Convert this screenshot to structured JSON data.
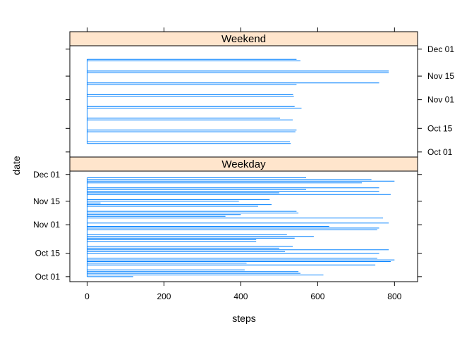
{
  "chart_data": {
    "type": "line",
    "xlabel": "steps",
    "ylabel": "date",
    "xlim": [
      -45,
      860
    ],
    "x_ticks": [
      0,
      200,
      400,
      600,
      800
    ],
    "y_ticks": [
      {
        "label": "Oct 01",
        "day": 1
      },
      {
        "label": "Oct 15",
        "day": 15
      },
      {
        "label": "Nov 01",
        "day": 32
      },
      {
        "label": "Nov 15",
        "day": 46
      },
      {
        "label": "Dec 01",
        "day": 62
      }
    ],
    "day_range": [
      -2,
      64
    ],
    "colors": {
      "strip_bg": "#ffe5cc",
      "line": "#0080ff",
      "frame": "#000000"
    },
    "panels": [
      {
        "name": "Weekend",
        "series": [
          {
            "day": 6,
            "values": [
              0,
              530,
              0
            ]
          },
          {
            "day": 7,
            "values": [
              0,
              528,
              0
            ]
          },
          {
            "day": 13,
            "values": [
              0,
              542,
              0
            ]
          },
          {
            "day": 14,
            "values": [
              0,
              545,
              0
            ]
          },
          {
            "day": 20,
            "values": [
              0,
              535,
              0
            ]
          },
          {
            "day": 21,
            "values": [
              0,
              502,
              0
            ]
          },
          {
            "day": 27,
            "values": [
              0,
              558,
              0
            ]
          },
          {
            "day": 28,
            "values": [
              0,
              540,
              0
            ]
          },
          {
            "day": 34,
            "values": [
              0,
              538,
              0
            ]
          },
          {
            "day": 35,
            "values": [
              0,
              536,
              0
            ]
          },
          {
            "day": 41,
            "values": [
              0,
              545,
              0
            ]
          },
          {
            "day": 42,
            "values": [
              0,
              760,
              0
            ]
          },
          {
            "day": 48,
            "values": [
              0,
              785,
              0
            ]
          },
          {
            "day": 49,
            "values": [
              0,
              785,
              0
            ]
          },
          {
            "day": 55,
            "values": [
              0,
              555,
              0
            ]
          },
          {
            "day": 56,
            "values": [
              0,
              545,
              0
            ]
          }
        ]
      },
      {
        "name": "Weekday",
        "series": [
          {
            "day": 1,
            "values": [
              0,
              120,
              0
            ]
          },
          {
            "day": 2,
            "values": [
              0,
              35,
              615,
              0
            ]
          },
          {
            "day": 3,
            "values": [
              0,
              555,
              0
            ]
          },
          {
            "day": 4,
            "values": [
              0,
              550,
              0
            ]
          },
          {
            "day": 5,
            "values": [
              0,
              410,
              0
            ]
          },
          {
            "day": 8,
            "values": [
              0,
              30,
              750,
              0
            ]
          },
          {
            "day": 9,
            "values": [
              0,
              415,
              0
            ]
          },
          {
            "day": 10,
            "values": [
              0,
              790,
              0
            ]
          },
          {
            "day": 11,
            "values": [
              0,
              800,
              0
            ]
          },
          {
            "day": 12,
            "values": [
              0,
              755,
              0
            ]
          },
          {
            "day": 15,
            "values": [
              0,
              20,
              760,
              0
            ]
          },
          {
            "day": 16,
            "values": [
              0,
              10,
              515,
              0
            ]
          },
          {
            "day": 17,
            "values": [
              0,
              785,
              0
            ]
          },
          {
            "day": 18,
            "values": [
              0,
              500,
              0
            ]
          },
          {
            "day": 19,
            "values": [
              0,
              535,
              0
            ]
          },
          {
            "day": 22,
            "values": [
              0,
              440,
              0
            ]
          },
          {
            "day": 23,
            "values": [
              0,
              440,
              0
            ]
          },
          {
            "day": 24,
            "values": [
              0,
              540,
              0
            ]
          },
          {
            "day": 25,
            "values": [
              0,
              590,
              0
            ]
          },
          {
            "day": 26,
            "values": [
              0,
              520,
              0
            ]
          },
          {
            "day": 29,
            "values": [
              0,
              755,
              0
            ]
          },
          {
            "day": 30,
            "values": [
              0,
              760,
              0
            ]
          },
          {
            "day": 31,
            "values": [
              0,
              630,
              0
            ]
          },
          {
            "day": 33,
            "values": [
              0,
              785,
              0
            ]
          },
          {
            "day": 36,
            "values": [
              0,
              770,
              0
            ]
          },
          {
            "day": 37,
            "values": [
              0,
              360,
              0
            ]
          },
          {
            "day": 38,
            "values": [
              0,
              400,
              0
            ]
          },
          {
            "day": 39,
            "values": [
              0,
              550,
              0
            ]
          },
          {
            "day": 40,
            "values": [
              0,
              545,
              0
            ]
          },
          {
            "day": 43,
            "values": [
              0,
              445,
              0
            ]
          },
          {
            "day": 44,
            "values": [
              0,
              480,
              0
            ]
          },
          {
            "day": 45,
            "values": [
              0,
              35,
              0
            ]
          },
          {
            "day": 46,
            "values": [
              0,
              395,
              0
            ]
          },
          {
            "day": 47,
            "values": [
              0,
              475,
              0
            ]
          },
          {
            "day": 50,
            "values": [
              0,
              790,
              0
            ]
          },
          {
            "day": 51,
            "values": [
              0,
              500,
              0
            ]
          },
          {
            "day": 52,
            "values": [
              0,
              760,
              0
            ]
          },
          {
            "day": 53,
            "values": [
              0,
              570,
              0
            ]
          },
          {
            "day": 54,
            "values": [
              0,
              760,
              0
            ]
          },
          {
            "day": 57,
            "values": [
              0,
              715,
              0
            ]
          },
          {
            "day": 58,
            "values": [
              0,
              800,
              0
            ]
          },
          {
            "day": 59,
            "values": [
              0,
              740,
              0
            ]
          },
          {
            "day": 60,
            "values": [
              0,
              570,
              0
            ]
          }
        ]
      }
    ]
  }
}
